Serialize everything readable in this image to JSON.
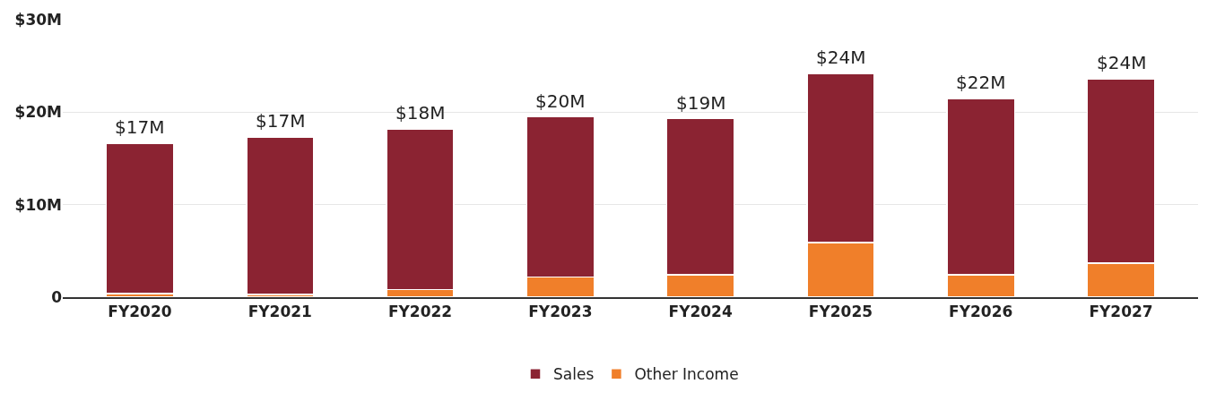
{
  "chart_data": {
    "type": "bar",
    "stacked": true,
    "categories": [
      "FY2020",
      "FY2021",
      "FY2022",
      "FY2023",
      "FY2024",
      "FY2025",
      "FY2026",
      "FY2027"
    ],
    "series": [
      {
        "name": "Other Income",
        "color": "#f07f2a",
        "values": [
          0.4,
          0.3,
          0.8,
          2.2,
          2.4,
          5.9,
          2.4,
          3.7
        ]
      },
      {
        "name": "Sales",
        "color": "#8b2332",
        "values": [
          16.2,
          17.0,
          17.4,
          17.3,
          16.9,
          18.3,
          19.1,
          19.9
        ]
      }
    ],
    "totals": [
      "$17M",
      "$17M",
      "$18M",
      "$20M",
      "$19M",
      "$24M",
      "$22M",
      "$24M"
    ],
    "ylim": [
      0,
      30
    ],
    "yticks": [
      {
        "value": 0,
        "label": "0"
      },
      {
        "value": 10,
        "label": "$10M"
      },
      {
        "value": 20,
        "label": "$20M"
      },
      {
        "value": 30,
        "label": "$30M"
      }
    ],
    "grid": "y",
    "legend": "bottom"
  }
}
